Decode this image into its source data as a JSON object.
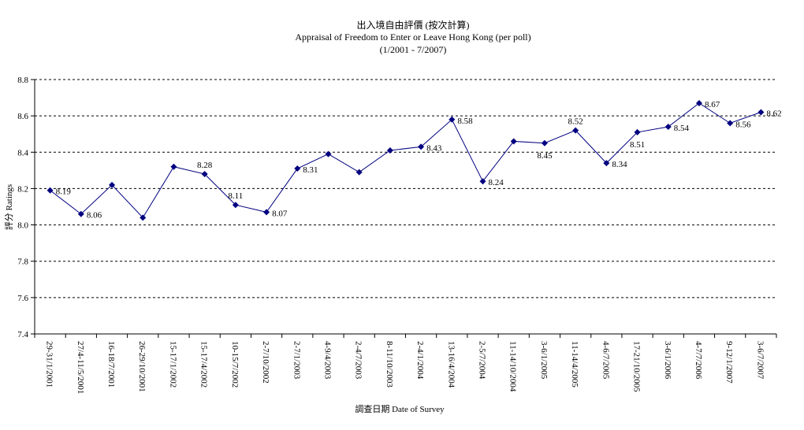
{
  "chart_data": {
    "type": "line",
    "title": "出入境自由評價 (按次計算)",
    "subtitle": "Appraisal of Freedom to Enter or Leave Hong Kong (per poll)",
    "subtitle2": "(1/2001 - 7/2007)",
    "xlabel": "調查日期 Date of Survey",
    "ylabel": "評分 Ratings",
    "ylim": [
      7.4,
      8.8
    ],
    "y_ticks": [
      "7.4",
      "7.6",
      "7.8",
      "8.0",
      "8.2",
      "8.4",
      "8.6",
      "8.8"
    ],
    "grid": "horizontal-dashed",
    "legend": "none",
    "line_color": "#000080",
    "marker_color": "#000080",
    "categories": [
      "29-31/1/2001",
      "27/4-11/5/2001",
      "16-18/7/2001",
      "26-29/10/2001",
      "15-17/1/2002",
      "15-17/4/2002",
      "10-15/7/2002",
      "2-7/10/2002",
      "2-7/1/2003",
      "4-9/4/2003",
      "2-4/7/2003",
      "8-11/10/2003",
      "2-4/1/2004",
      "13-16/4/2004",
      "2-5/7/2004",
      "11-14/10/2004",
      "3-6/1/2005",
      "11-14/4/2005",
      "4-6/7/2005",
      "17-21/10/2005",
      "3-6/1/2006",
      "4-7/7/2006",
      "9-12/1/2007",
      "3-6/7/2007"
    ],
    "series": [
      {
        "values": [
          8.19,
          8.06,
          8.22,
          8.04,
          8.32,
          8.28,
          8.11,
          8.07,
          8.31,
          8.39,
          8.29,
          8.41,
          8.43,
          8.58,
          8.24,
          8.46,
          8.45,
          8.52,
          8.34,
          8.51,
          8.54,
          8.67,
          8.56,
          8.62
        ],
        "data_labels": [
          "8.19",
          "8.06",
          "",
          "",
          "",
          "8.28",
          "8.11",
          "8.07",
          "8.31",
          "",
          "",
          "",
          "8.43",
          "8.58",
          "8.24",
          "",
          "8.45",
          "8.52",
          "8.34",
          "8.51",
          "8.54",
          "8.67",
          "8.56",
          "8.62"
        ]
      }
    ]
  }
}
